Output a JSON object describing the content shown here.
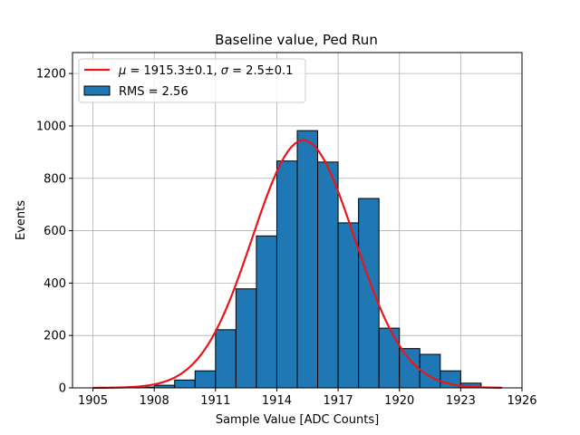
{
  "chart_data": {
    "type": "bar",
    "title": "Baseline value, Ped Run",
    "xlabel": "Sample Value [ADC Counts]",
    "ylabel": "Events",
    "xlim": [
      1904,
      1926
    ],
    "ylim": [
      0,
      1280
    ],
    "xticks": [
      1905,
      1908,
      1911,
      1914,
      1917,
      1920,
      1923,
      1926
    ],
    "xtick_labels": [
      "1905",
      "1908",
      "1911",
      "1914",
      "1917",
      "1920",
      "1923",
      "1926"
    ],
    "yticks": [
      0,
      200,
      400,
      600,
      800,
      1000,
      1200
    ],
    "ytick_labels": [
      "0",
      "200",
      "400",
      "600",
      "800",
      "1000",
      "1200"
    ],
    "grid": true,
    "bin_edges": [
      1905,
      1906,
      1907,
      1908,
      1909,
      1910,
      1911,
      1912,
      1913,
      1914,
      1915,
      1916,
      1917,
      1918,
      1919,
      1920,
      1921,
      1922,
      1923,
      1924,
      1925
    ],
    "counts": [
      0,
      0,
      3,
      10,
      30,
      65,
      222,
      378,
      580,
      866,
      982,
      862,
      630,
      723,
      228,
      150,
      128,
      65,
      18,
      2
    ],
    "bar_color": "#1f77b4",
    "fit": {
      "mu": 1915.3,
      "sigma": 2.5,
      "amplitude": 945,
      "range": [
        1905,
        1925
      ],
      "color": "#e8161b"
    },
    "legend": {
      "placement": "upper-left",
      "entries": [
        {
          "label_mu": "μ",
          "label_sigma": "σ",
          "text1": " = 1915.3±0.1, ",
          "text2": " = 2.5±0.1",
          "kind": "line"
        },
        {
          "text": "RMS = 2.56",
          "kind": "patch"
        }
      ]
    }
  }
}
